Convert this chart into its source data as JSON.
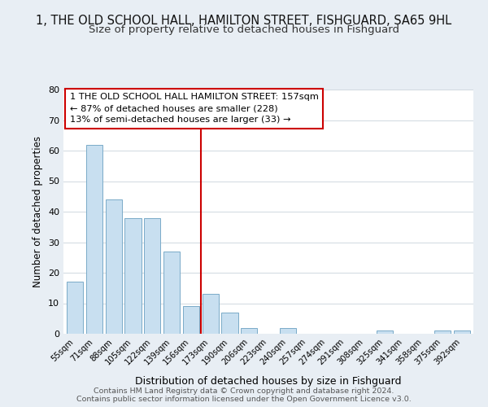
{
  "title1": "1, THE OLD SCHOOL HALL, HAMILTON STREET, FISHGUARD, SA65 9HL",
  "title2": "Size of property relative to detached houses in Fishguard",
  "xlabel": "Distribution of detached houses by size in Fishguard",
  "ylabel": "Number of detached properties",
  "bar_labels": [
    "55sqm",
    "71sqm",
    "88sqm",
    "105sqm",
    "122sqm",
    "139sqm",
    "156sqm",
    "173sqm",
    "190sqm",
    "206sqm",
    "223sqm",
    "240sqm",
    "257sqm",
    "274sqm",
    "291sqm",
    "308sqm",
    "325sqm",
    "341sqm",
    "358sqm",
    "375sqm",
    "392sqm"
  ],
  "bar_heights": [
    17,
    62,
    44,
    38,
    38,
    27,
    9,
    13,
    7,
    2,
    0,
    2,
    0,
    0,
    0,
    0,
    1,
    0,
    0,
    1,
    1
  ],
  "bar_color": "#c8dff0",
  "bar_edge_color": "#7aaac8",
  "vline_x": 6.5,
  "vline_color": "#cc0000",
  "annotation_line1": "1 THE OLD SCHOOL HALL HAMILTON STREET: 157sqm",
  "annotation_line2": "← 87% of detached houses are smaller (228)",
  "annotation_line3": "13% of semi-detached houses are larger (33) →",
  "annotation_box_color": "#ffffff",
  "annotation_box_edge": "#cc0000",
  "ylim": [
    0,
    80
  ],
  "yticks": [
    0,
    10,
    20,
    30,
    40,
    50,
    60,
    70,
    80
  ],
  "footer1": "Contains HM Land Registry data © Crown copyright and database right 2024.",
  "footer2": "Contains public sector information licensed under the Open Government Licence v3.0.",
  "bg_color": "#e8eef4",
  "plot_bg_color": "#ffffff",
  "title1_fontsize": 10.5,
  "title2_fontsize": 9.5
}
